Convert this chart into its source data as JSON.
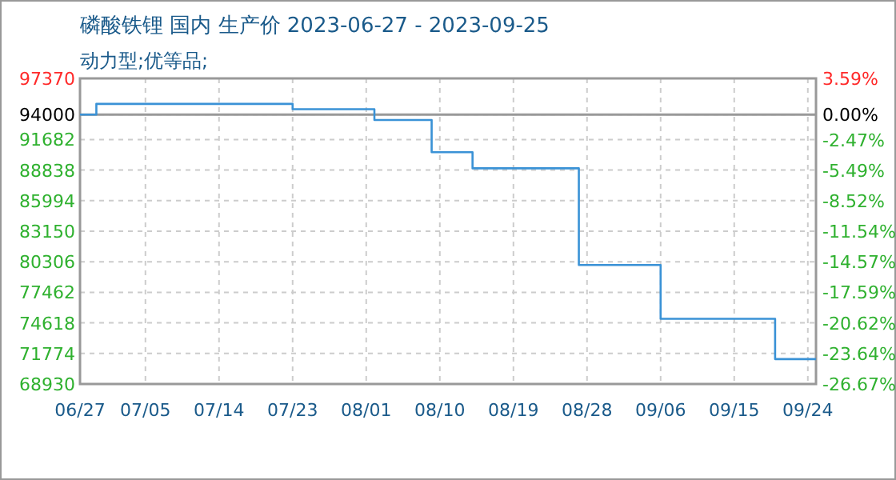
{
  "chart_data": {
    "type": "step",
    "title": "磷酸铁锂 国内 生产价 2023-06-27 - 2023-09-25",
    "subtitle": "动力型;优等品;",
    "x": [
      "2023-06-27",
      "2023-06-29",
      "2023-07-23",
      "2023-08-02",
      "2023-08-09",
      "2023-08-14",
      "2023-08-27",
      "2023-09-06",
      "2023-09-20",
      "2023-09-25"
    ],
    "series": [
      {
        "color": "#3a92d6",
        "values": [
          94000,
          95000,
          94500,
          93500,
          90500,
          89000,
          80000,
          75000,
          71250,
          71250
        ]
      }
    ],
    "xlim": [
      "2023-06-27",
      "2023-09-25"
    ],
    "xticks": [
      {
        "value": "2023-06-27",
        "label": "06/27"
      },
      {
        "value": "2023-07-05",
        "label": "07/05"
      },
      {
        "value": "2023-07-14",
        "label": "07/14"
      },
      {
        "value": "2023-07-23",
        "label": "07/23"
      },
      {
        "value": "2023-08-01",
        "label": "08/01"
      },
      {
        "value": "2023-08-10",
        "label": "08/10"
      },
      {
        "value": "2023-08-19",
        "label": "08/19"
      },
      {
        "value": "2023-08-28",
        "label": "08/28"
      },
      {
        "value": "2023-09-06",
        "label": "09/06"
      },
      {
        "value": "2023-09-15",
        "label": "09/15"
      },
      {
        "value": "2023-09-24",
        "label": "09/24"
      }
    ],
    "ylim": [
      68930,
      97370
    ],
    "yticks": [
      68930,
      71774,
      74618,
      77462,
      80306,
      83150,
      85994,
      88838,
      91682,
      94000,
      97370
    ],
    "y2lim": [
      -26.67,
      3.59
    ],
    "y2ticks": [
      {
        "value": -26.67,
        "label": "-26.67%"
      },
      {
        "value": -23.64,
        "label": "-23.64%"
      },
      {
        "value": -20.62,
        "label": "-20.62%"
      },
      {
        "value": -17.59,
        "label": "-17.59%"
      },
      {
        "value": -14.57,
        "label": "-14.57%"
      },
      {
        "value": -11.54,
        "label": "-11.54%"
      },
      {
        "value": -8.52,
        "label": "-8.52%"
      },
      {
        "value": -5.49,
        "label": "-5.49%"
      },
      {
        "value": -2.47,
        "label": "-2.47%"
      },
      {
        "value": 0,
        "label": "0.00%"
      },
      {
        "value": 3.59,
        "label": "3.59%"
      }
    ],
    "ref_lines": [
      {
        "axis": "y",
        "value": 94000,
        "color": "#999999"
      }
    ],
    "grid": true,
    "line_style": "solid",
    "marker": "none"
  }
}
